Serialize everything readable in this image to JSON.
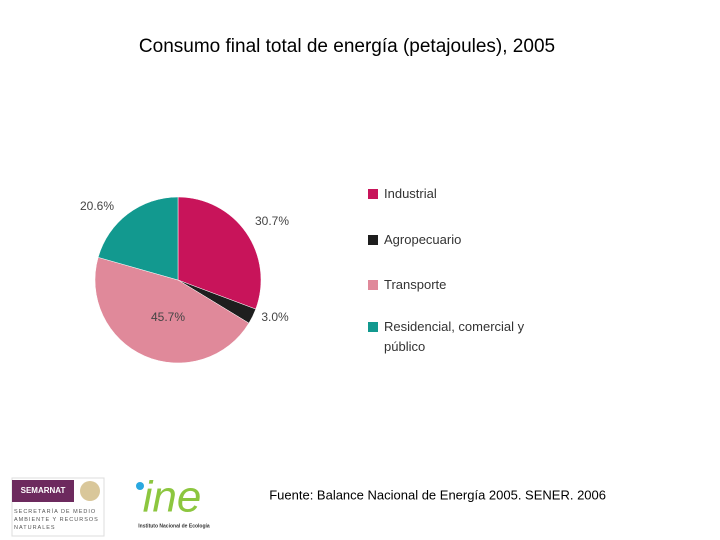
{
  "chart_data": {
    "type": "pie",
    "title": "Consumo final total de energía (petajoules), 2005",
    "categories": [
      "Industrial",
      "Agropecuario",
      "Transporte",
      "Residencial, comercial y público"
    ],
    "values": [
      30.7,
      3.0,
      45.7,
      20.6
    ],
    "value_labels": [
      "30.7%",
      "3.0%",
      "45.7%",
      "20.6%"
    ],
    "colors": [
      "#c8145a",
      "#1e1e1e",
      "#e0899a",
      "#12998f"
    ],
    "source": "Fuente: Balance Nacional de Energía 2005. SENER. 2006"
  },
  "logos": {
    "semarnat": "SEMARNAT",
    "secretaria": "SECRETARÍA DE MEDIO AMBIENTE Y RECURSOS NATURALES",
    "ine": "ine",
    "instituto": "Instituto Nacional de Ecología"
  }
}
